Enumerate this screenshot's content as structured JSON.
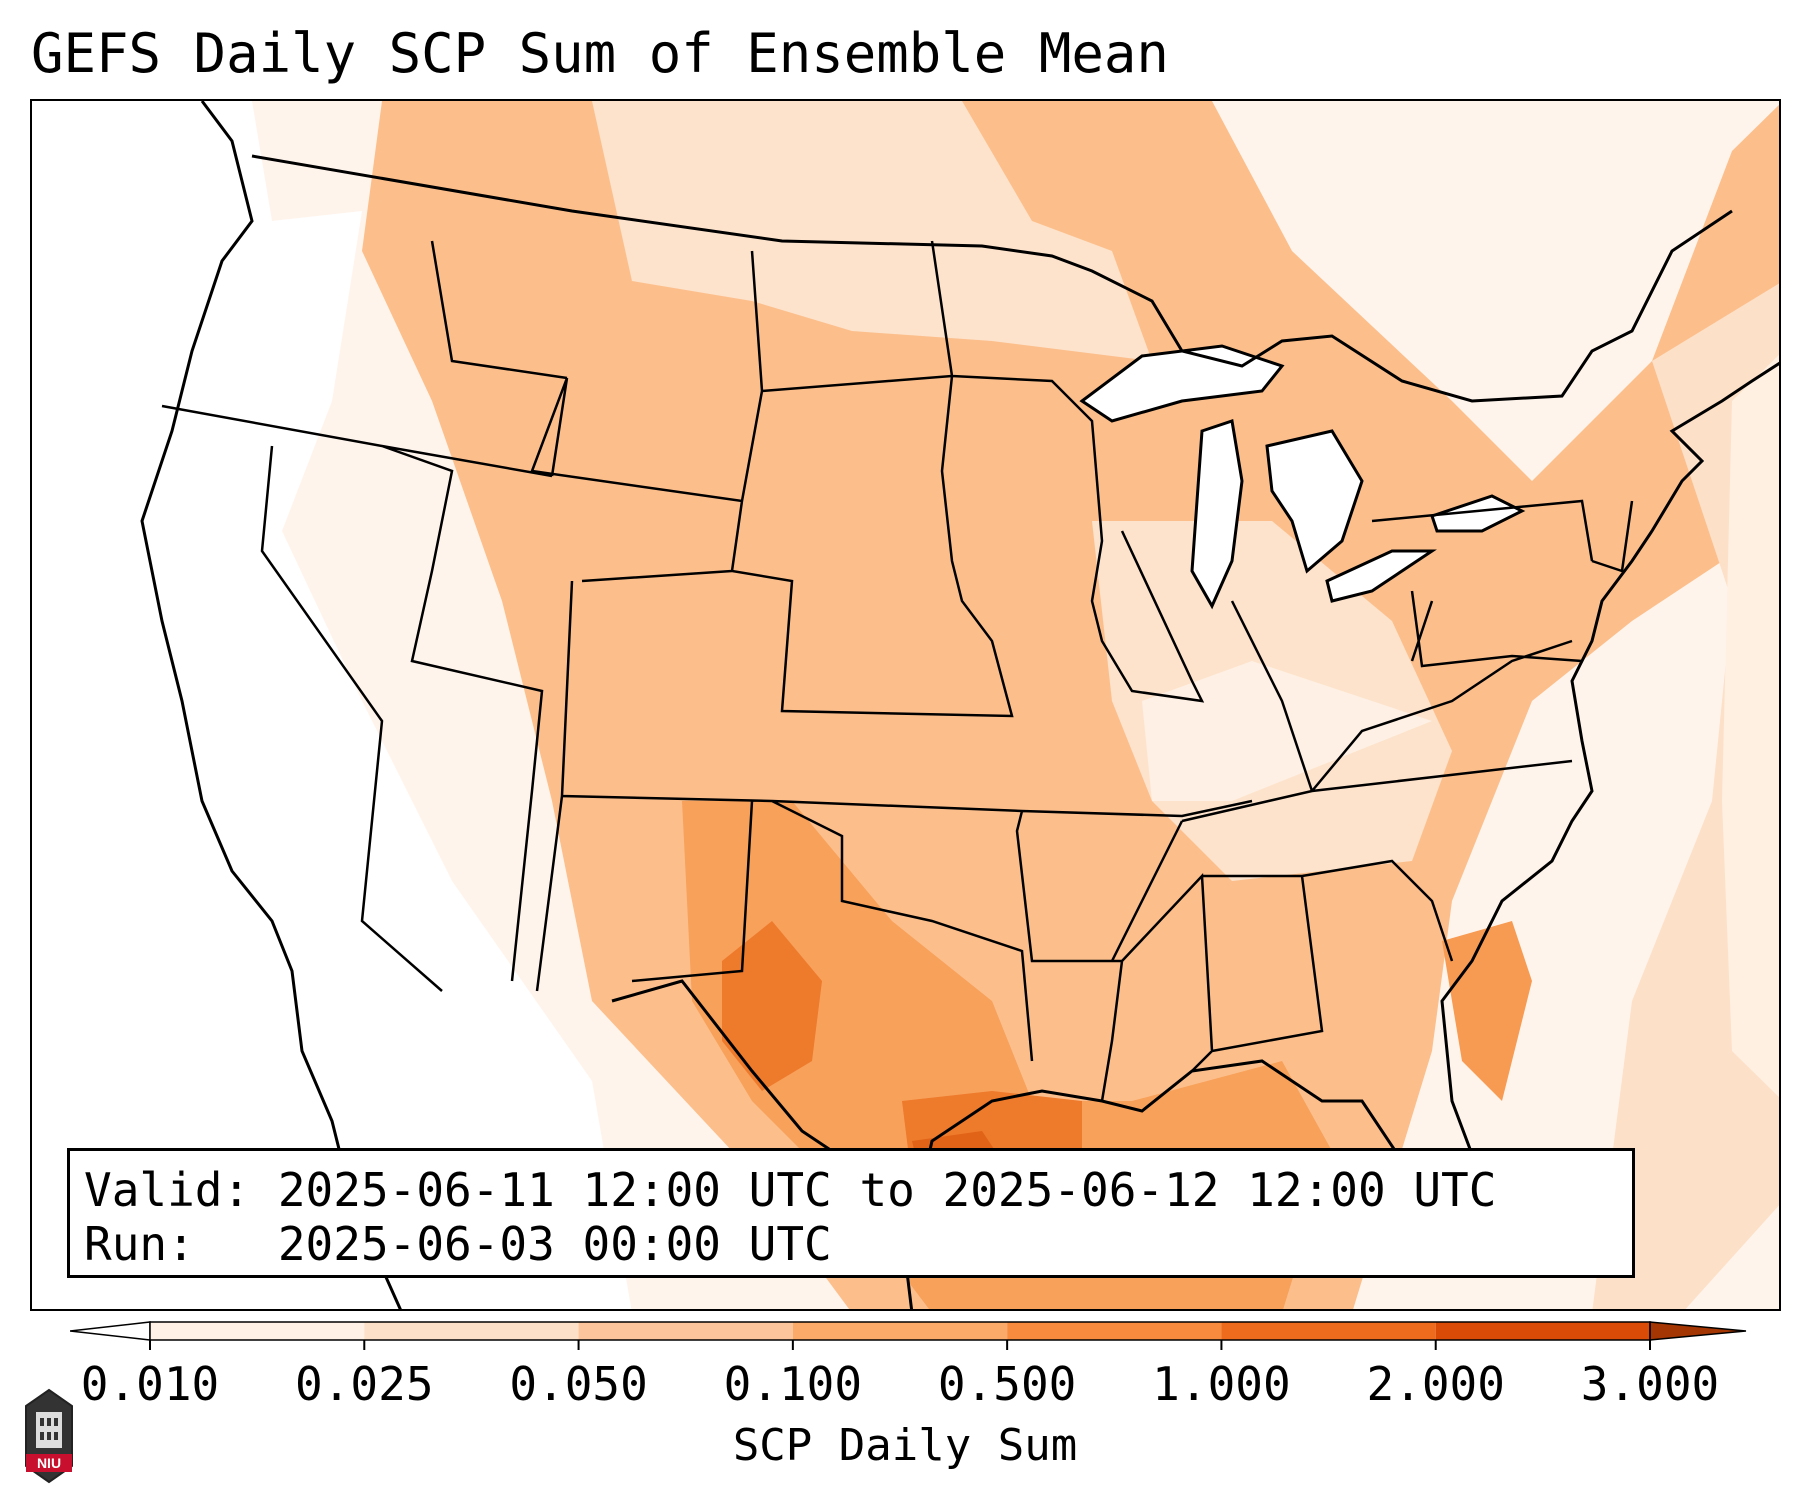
{
  "title": "GEFS Daily SCP Sum of Ensemble Mean",
  "info": {
    "valid_line": "Valid: 2025-06-11 12:00 UTC to 2025-06-12 12:00 UTC",
    "run_line": "Run:   2025-06-03 00:00 UTC"
  },
  "colorbar": {
    "label": "SCP Daily Sum",
    "ticks": [
      "0.010",
      "0.025",
      "0.050",
      "0.100",
      "0.500",
      "1.000",
      "2.000",
      "3.000"
    ],
    "colors": [
      "#fff1e6",
      "#fde0c8",
      "#fdc59b",
      "#fcaa6a",
      "#f88b3d",
      "#ee6a1c",
      "#d94b07"
    ],
    "under_color": "#ffffff",
    "over_color": "#a33603",
    "extend": "both"
  },
  "map": {
    "region": "CONUS",
    "colormap": "Oranges"
  },
  "logo": {
    "text": "NIU"
  }
}
